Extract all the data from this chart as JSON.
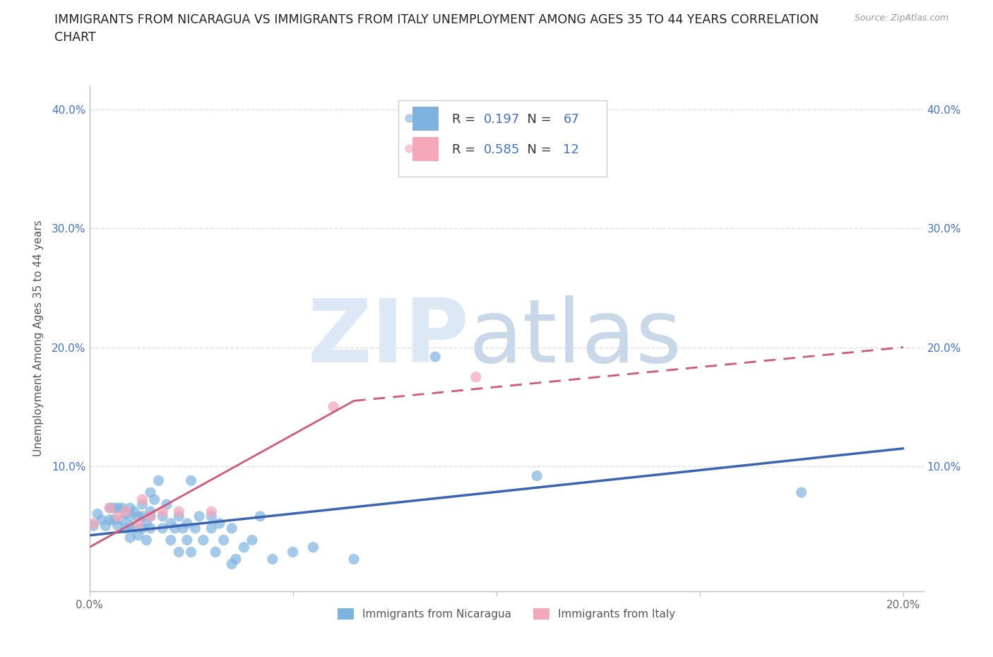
{
  "title_line1": "IMMIGRANTS FROM NICARAGUA VS IMMIGRANTS FROM ITALY UNEMPLOYMENT AMONG AGES 35 TO 44 YEARS CORRELATION",
  "title_line2": "CHART",
  "source": "Source: ZipAtlas.com",
  "ylabel": "Unemployment Among Ages 35 to 44 years",
  "xlim": [
    0.0,
    0.205
  ],
  "ylim": [
    -0.005,
    0.42
  ],
  "xticks": [
    0.0,
    0.05,
    0.1,
    0.15,
    0.2
  ],
  "yticks": [
    0.0,
    0.1,
    0.2,
    0.3,
    0.4
  ],
  "nicaragua_color": "#7EB3E0",
  "italy_color": "#F4A7B9",
  "nicaragua_line_color": "#3A64B0",
  "italy_line_color": "#D05878",
  "R_nicaragua": 0.197,
  "N_nicaragua": 67,
  "R_italy": 0.585,
  "N_italy": 12,
  "background_color": "#ffffff",
  "grid_color": "#dddddd",
  "watermark_zip_color": "#dce8f5",
  "watermark_atlas_color": "#c8d8e8",
  "nicaragua_x": [
    0.001,
    0.002,
    0.003,
    0.004,
    0.005,
    0.005,
    0.006,
    0.006,
    0.007,
    0.007,
    0.008,
    0.008,
    0.009,
    0.009,
    0.01,
    0.01,
    0.01,
    0.01,
    0.011,
    0.011,
    0.012,
    0.012,
    0.013,
    0.013,
    0.013,
    0.014,
    0.014,
    0.015,
    0.015,
    0.015,
    0.015,
    0.016,
    0.017,
    0.018,
    0.018,
    0.019,
    0.02,
    0.02,
    0.021,
    0.022,
    0.022,
    0.023,
    0.024,
    0.024,
    0.025,
    0.025,
    0.026,
    0.027,
    0.028,
    0.03,
    0.03,
    0.031,
    0.032,
    0.033,
    0.035,
    0.035,
    0.036,
    0.038,
    0.04,
    0.042,
    0.045,
    0.05,
    0.055,
    0.065,
    0.085,
    0.11,
    0.175
  ],
  "nicaragua_y": [
    0.05,
    0.06,
    0.055,
    0.05,
    0.065,
    0.055,
    0.065,
    0.055,
    0.065,
    0.05,
    0.065,
    0.055,
    0.06,
    0.048,
    0.058,
    0.065,
    0.04,
    0.05,
    0.062,
    0.048,
    0.058,
    0.042,
    0.068,
    0.048,
    0.058,
    0.052,
    0.038,
    0.062,
    0.048,
    0.058,
    0.078,
    0.072,
    0.088,
    0.048,
    0.058,
    0.068,
    0.052,
    0.038,
    0.048,
    0.058,
    0.028,
    0.048,
    0.052,
    0.038,
    0.088,
    0.028,
    0.048,
    0.058,
    0.038,
    0.048,
    0.058,
    0.028,
    0.052,
    0.038,
    0.018,
    0.048,
    0.022,
    0.032,
    0.038,
    0.058,
    0.022,
    0.028,
    0.032,
    0.022,
    0.192,
    0.092,
    0.078
  ],
  "italy_x": [
    0.001,
    0.005,
    0.007,
    0.009,
    0.012,
    0.013,
    0.015,
    0.018,
    0.022,
    0.03,
    0.06,
    0.095
  ],
  "italy_y": [
    0.052,
    0.065,
    0.058,
    0.062,
    0.052,
    0.072,
    0.058,
    0.062,
    0.062,
    0.062,
    0.15,
    0.175
  ],
  "nic_line_x": [
    0.0,
    0.2
  ],
  "nic_line_y": [
    0.042,
    0.115
  ],
  "ita_line_x": [
    0.0,
    0.095
  ],
  "ita_line_y": [
    0.032,
    0.175
  ]
}
